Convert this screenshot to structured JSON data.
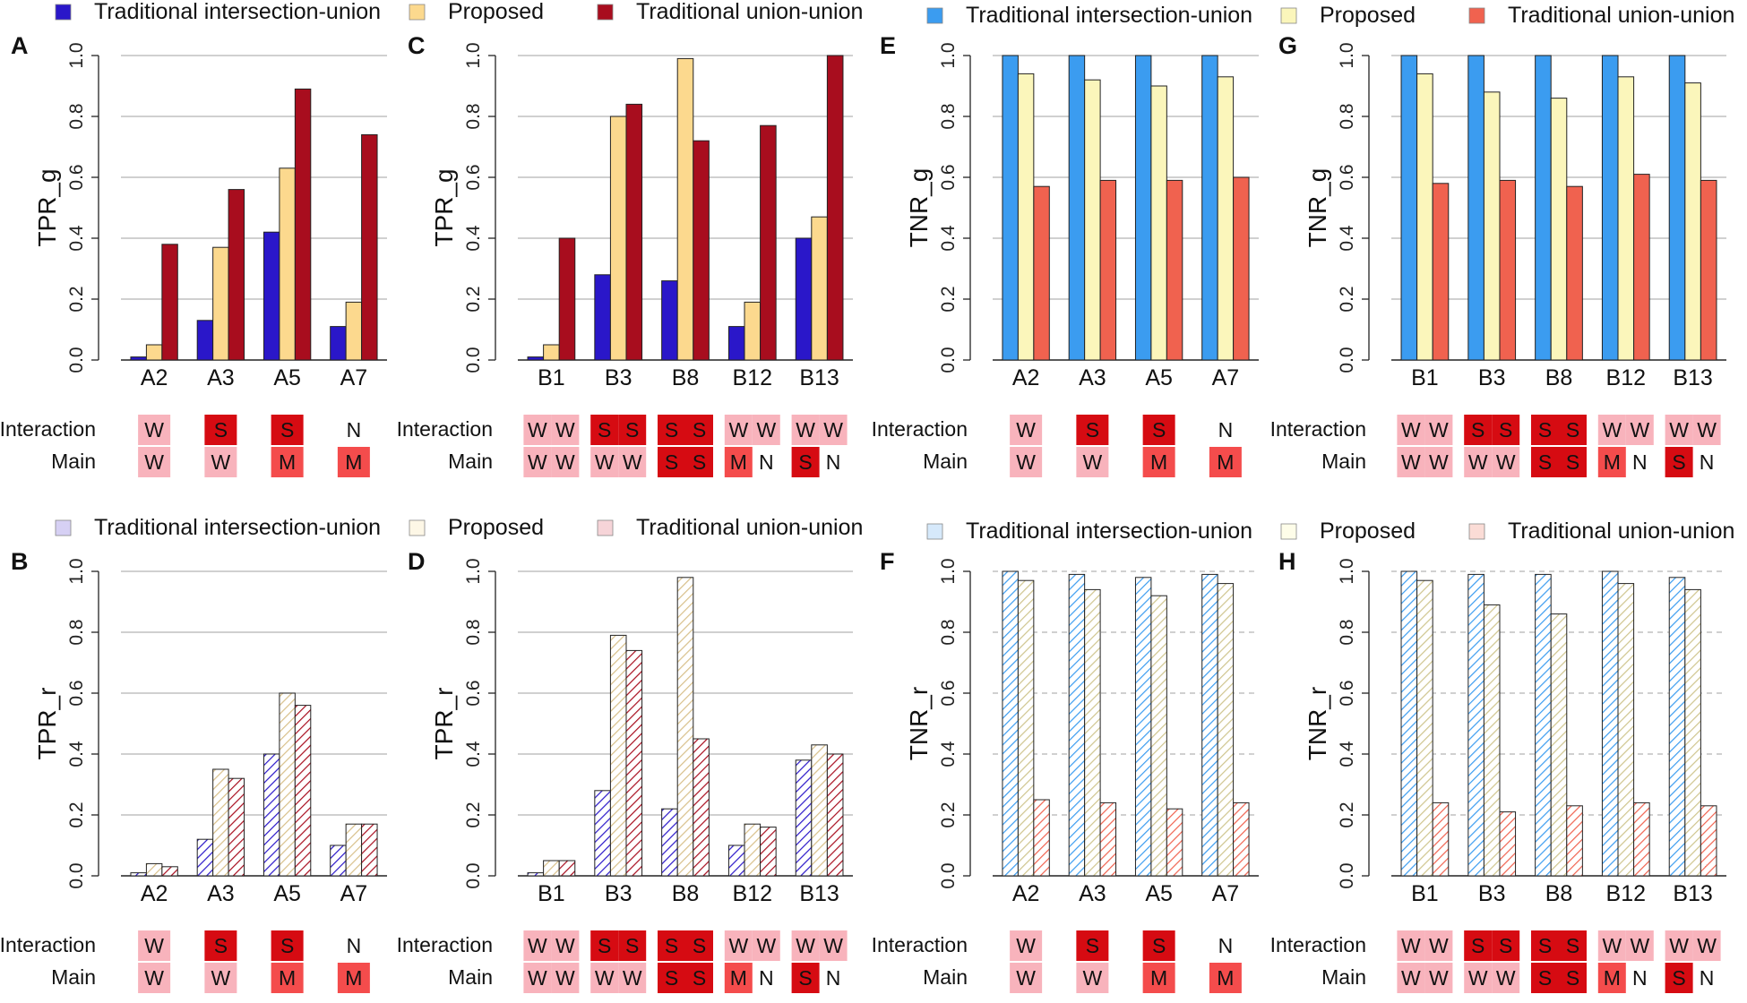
{
  "colors": {
    "ti_dark": "#2a17c9",
    "prop_dark": "#fcd98e",
    "tu_dark": "#a80d1e",
    "ti_blue": "#3b9cf0",
    "prop_yellow": "#fbf6bb",
    "tu_red": "#f0624f",
    "ti_hatch_dark": "#2a17c9",
    "prop_hatch_dark": "#d8c08a",
    "tu_hatch_dark": "#a80d1e",
    "ti_hatch_blue": "#3b9cf0",
    "prop_hatch_yellow": "#c8c08a",
    "tu_hatch_red": "#f0624f",
    "W": "#f8b3bc",
    "S": "#d60b12",
    "M": "#f44c4c",
    "N": "#ffffff"
  },
  "legends": [
    {
      "items": [
        "Traditional intersection-union",
        "Proposed",
        "Traditional union-union"
      ],
      "style": "dark-solid"
    },
    {
      "items": [
        "Traditional intersection-union",
        "Proposed",
        "Traditional union-union"
      ],
      "style": "light-solid"
    },
    {
      "items": [
        "Traditional intersection-union",
        "Proposed",
        "Traditional union-union"
      ],
      "style": "dark-hatch"
    },
    {
      "items": [
        "Traditional intersection-union",
        "Proposed",
        "Traditional union-union"
      ],
      "style": "light-hatch"
    }
  ],
  "table_labels": {
    "interaction": "Interaction",
    "main": "Main"
  },
  "chart_data": [
    {
      "panel": "A",
      "type": "bar",
      "ylabel": "TPR_g",
      "ylim": [
        0,
        1
      ],
      "yticks": [
        "0.0",
        "0.2",
        "0.4",
        "0.6",
        "0.8",
        "1.0"
      ],
      "categories": [
        "A2",
        "A3",
        "A5",
        "A7"
      ],
      "series": [
        {
          "name": "Traditional intersection-union",
          "values": [
            0.01,
            0.13,
            0.42,
            0.11
          ]
        },
        {
          "name": "Proposed",
          "values": [
            0.05,
            0.37,
            0.63,
            0.19
          ]
        },
        {
          "name": "Traditional union-union",
          "values": [
            0.38,
            0.56,
            0.89,
            0.74
          ]
        }
      ],
      "interaction": [
        [
          "W"
        ],
        [
          "S"
        ],
        [
          "S"
        ],
        [
          "N"
        ]
      ],
      "main": [
        [
          "W"
        ],
        [
          "W"
        ],
        [
          "M"
        ],
        [
          "M"
        ]
      ]
    },
    {
      "panel": "B",
      "type": "bar",
      "ylabel": "TPR_r",
      "ylim": [
        0,
        1
      ],
      "yticks": [
        "0.0",
        "0.2",
        "0.4",
        "0.6",
        "0.8",
        "1.0"
      ],
      "categories": [
        "A2",
        "A3",
        "A5",
        "A7"
      ],
      "series": [
        {
          "name": "Traditional intersection-union",
          "values": [
            0.01,
            0.12,
            0.4,
            0.1
          ]
        },
        {
          "name": "Proposed",
          "values": [
            0.04,
            0.35,
            0.6,
            0.17
          ]
        },
        {
          "name": "Traditional union-union",
          "values": [
            0.03,
            0.32,
            0.56,
            0.17
          ]
        }
      ],
      "interaction": [
        [
          "W"
        ],
        [
          "S"
        ],
        [
          "S"
        ],
        [
          "N"
        ]
      ],
      "main": [
        [
          "W"
        ],
        [
          "W"
        ],
        [
          "M"
        ],
        [
          "M"
        ]
      ]
    },
    {
      "panel": "C",
      "type": "bar",
      "ylabel": "TPR_g",
      "ylim": [
        0,
        1
      ],
      "yticks": [
        "0.0",
        "0.2",
        "0.4",
        "0.6",
        "0.8",
        "1.0"
      ],
      "categories": [
        "B1",
        "B3",
        "B8",
        "B12",
        "B13"
      ],
      "series": [
        {
          "name": "Traditional intersection-union",
          "values": [
            0.01,
            0.28,
            0.26,
            0.11,
            0.4
          ]
        },
        {
          "name": "Proposed",
          "values": [
            0.05,
            0.8,
            0.99,
            0.19,
            0.47
          ]
        },
        {
          "name": "Traditional union-union",
          "values": [
            0.4,
            0.84,
            0.72,
            0.77,
            1.0
          ]
        }
      ],
      "interaction": [
        [
          "W",
          "W"
        ],
        [
          "S",
          "S"
        ],
        [
          "S",
          "S"
        ],
        [
          "W",
          "W"
        ],
        [
          "W",
          "W"
        ]
      ],
      "main": [
        [
          "W",
          "W"
        ],
        [
          "W",
          "W"
        ],
        [
          "S",
          "S"
        ],
        [
          "M",
          "N"
        ],
        [
          "S",
          "N"
        ]
      ]
    },
    {
      "panel": "D",
      "type": "bar",
      "ylabel": "TPR_r",
      "ylim": [
        0,
        1
      ],
      "yticks": [
        "0.0",
        "0.2",
        "0.4",
        "0.6",
        "0.8",
        "1.0"
      ],
      "categories": [
        "B1",
        "B3",
        "B8",
        "B12",
        "B13"
      ],
      "series": [
        {
          "name": "Traditional intersection-union",
          "values": [
            0.01,
            0.28,
            0.22,
            0.1,
            0.38
          ]
        },
        {
          "name": "Proposed",
          "values": [
            0.05,
            0.79,
            0.98,
            0.17,
            0.43
          ]
        },
        {
          "name": "Traditional union-union",
          "values": [
            0.05,
            0.74,
            0.45,
            0.16,
            0.4
          ]
        }
      ],
      "interaction": [
        [
          "W",
          "W"
        ],
        [
          "S",
          "S"
        ],
        [
          "S",
          "S"
        ],
        [
          "W",
          "W"
        ],
        [
          "W",
          "W"
        ]
      ],
      "main": [
        [
          "W",
          "W"
        ],
        [
          "W",
          "W"
        ],
        [
          "S",
          "S"
        ],
        [
          "M",
          "N"
        ],
        [
          "S",
          "N"
        ]
      ]
    },
    {
      "panel": "E",
      "type": "bar",
      "ylabel": "TNR_g",
      "ylim": [
        0,
        1
      ],
      "yticks": [
        "0.0",
        "0.2",
        "0.4",
        "0.6",
        "0.8",
        "1.0"
      ],
      "categories": [
        "A2",
        "A3",
        "A5",
        "A7"
      ],
      "series": [
        {
          "name": "Traditional intersection-union",
          "values": [
            1.0,
            1.0,
            1.0,
            1.0
          ]
        },
        {
          "name": "Proposed",
          "values": [
            0.94,
            0.92,
            0.9,
            0.93
          ]
        },
        {
          "name": "Traditional union-union",
          "values": [
            0.57,
            0.59,
            0.59,
            0.6
          ]
        }
      ],
      "interaction": [
        [
          "W"
        ],
        [
          "S"
        ],
        [
          "S"
        ],
        [
          "N"
        ]
      ],
      "main": [
        [
          "W"
        ],
        [
          "W"
        ],
        [
          "M"
        ],
        [
          "M"
        ]
      ]
    },
    {
      "panel": "F",
      "type": "bar",
      "ylabel": "TNR_r",
      "ylim": [
        0,
        1
      ],
      "yticks": [
        "0.0",
        "0.2",
        "0.4",
        "0.6",
        "0.8",
        "1.0"
      ],
      "categories": [
        "A2",
        "A3",
        "A5",
        "A7"
      ],
      "series": [
        {
          "name": "Traditional intersection-union",
          "values": [
            1.0,
            0.99,
            0.98,
            0.99
          ]
        },
        {
          "name": "Proposed",
          "values": [
            0.97,
            0.94,
            0.92,
            0.96
          ]
        },
        {
          "name": "Traditional union-union",
          "values": [
            0.25,
            0.24,
            0.22,
            0.24
          ]
        }
      ],
      "interaction": [
        [
          "W"
        ],
        [
          "S"
        ],
        [
          "S"
        ],
        [
          "N"
        ]
      ],
      "main": [
        [
          "W"
        ],
        [
          "W"
        ],
        [
          "M"
        ],
        [
          "M"
        ]
      ]
    },
    {
      "panel": "G",
      "type": "bar",
      "ylabel": "TNR_g",
      "ylim": [
        0,
        1
      ],
      "yticks": [
        "0.0",
        "0.2",
        "0.4",
        "0.6",
        "0.8",
        "1.0"
      ],
      "categories": [
        "B1",
        "B3",
        "B8",
        "B12",
        "B13"
      ],
      "series": [
        {
          "name": "Traditional intersection-union",
          "values": [
            1.0,
            1.0,
            1.0,
            1.0,
            1.0
          ]
        },
        {
          "name": "Proposed",
          "values": [
            0.94,
            0.88,
            0.86,
            0.93,
            0.91
          ]
        },
        {
          "name": "Traditional union-union",
          "values": [
            0.58,
            0.59,
            0.57,
            0.61,
            0.59
          ]
        }
      ],
      "interaction": [
        [
          "W",
          "W"
        ],
        [
          "S",
          "S"
        ],
        [
          "S",
          "S"
        ],
        [
          "W",
          "W"
        ],
        [
          "W",
          "W"
        ]
      ],
      "main": [
        [
          "W",
          "W"
        ],
        [
          "W",
          "W"
        ],
        [
          "S",
          "S"
        ],
        [
          "M",
          "N"
        ],
        [
          "S",
          "N"
        ]
      ]
    },
    {
      "panel": "H",
      "type": "bar",
      "ylabel": "TNR_r",
      "ylim": [
        0,
        1
      ],
      "yticks": [
        "0.0",
        "0.2",
        "0.4",
        "0.6",
        "0.8",
        "1.0"
      ],
      "categories": [
        "B1",
        "B3",
        "B8",
        "B12",
        "B13"
      ],
      "series": [
        {
          "name": "Traditional intersection-union",
          "values": [
            1.0,
            0.99,
            0.99,
            1.0,
            0.98
          ]
        },
        {
          "name": "Proposed",
          "values": [
            0.97,
            0.89,
            0.86,
            0.96,
            0.94
          ]
        },
        {
          "name": "Traditional union-union",
          "values": [
            0.24,
            0.21,
            0.23,
            0.24,
            0.23
          ]
        }
      ],
      "interaction": [
        [
          "W",
          "W"
        ],
        [
          "S",
          "S"
        ],
        [
          "S",
          "S"
        ],
        [
          "W",
          "W"
        ],
        [
          "W",
          "W"
        ]
      ],
      "main": [
        [
          "W",
          "W"
        ],
        [
          "W",
          "W"
        ],
        [
          "S",
          "S"
        ],
        [
          "M",
          "N"
        ],
        [
          "S",
          "N"
        ]
      ]
    }
  ]
}
